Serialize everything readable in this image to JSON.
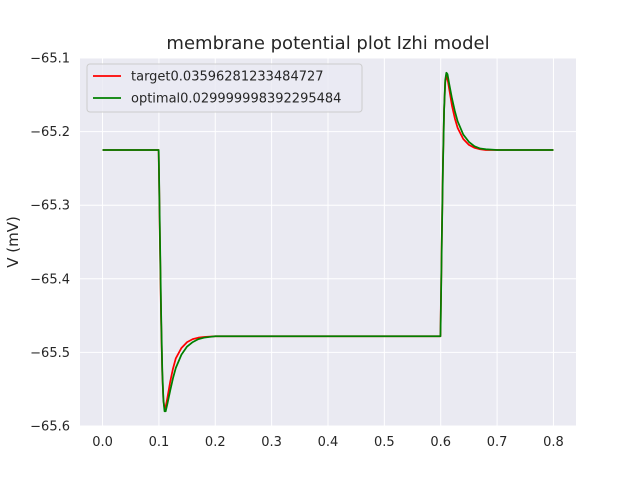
{
  "chart_data": {
    "type": "line",
    "title": "membrane potential plot Izhi model",
    "xlabel": "",
    "ylabel": "V (mV)",
    "xlim": [
      -0.04,
      0.84
    ],
    "ylim": [
      -65.6,
      -65.1
    ],
    "xticks": [
      "0.0",
      "0.1",
      "0.2",
      "0.3",
      "0.4",
      "0.5",
      "0.6",
      "0.7",
      "0.8"
    ],
    "yticks": [
      "−65.6",
      "−65.5",
      "−65.4",
      "−65.3",
      "−65.2",
      "−65.1"
    ],
    "xtick_values": [
      0.0,
      0.1,
      0.2,
      0.3,
      0.4,
      0.5,
      0.6,
      0.7,
      0.8
    ],
    "ytick_values": [
      -65.6,
      -65.5,
      -65.4,
      -65.3,
      -65.2,
      -65.1
    ],
    "grid": true,
    "legend_position": "top-left",
    "background_color": "#eaeaf2",
    "series": [
      {
        "name": "target0.03596281233484727",
        "color": "#ff0000",
        "x": [
          0.0,
          0.05,
          0.0995,
          0.1,
          0.102,
          0.104,
          0.106,
          0.108,
          0.11,
          0.112,
          0.115,
          0.12,
          0.125,
          0.13,
          0.14,
          0.15,
          0.16,
          0.17,
          0.18,
          0.2,
          0.22,
          0.25,
          0.3,
          0.4,
          0.5,
          0.5995,
          0.6,
          0.602,
          0.604,
          0.606,
          0.608,
          0.61,
          0.612,
          0.615,
          0.62,
          0.625,
          0.63,
          0.64,
          0.65,
          0.66,
          0.67,
          0.68,
          0.7,
          0.72,
          0.75,
          0.8
        ],
        "y": [
          -65.225,
          -65.225,
          -65.225,
          -65.25,
          -65.36,
          -65.46,
          -65.53,
          -65.565,
          -65.576,
          -65.574,
          -65.562,
          -65.54,
          -65.522,
          -65.508,
          -65.494,
          -65.486,
          -65.482,
          -65.48,
          -65.479,
          -65.478,
          -65.478,
          -65.478,
          -65.478,
          -65.478,
          -65.478,
          -65.478,
          -65.45,
          -65.34,
          -65.24,
          -65.17,
          -65.133,
          -65.125,
          -65.128,
          -65.142,
          -65.165,
          -65.182,
          -65.195,
          -65.21,
          -65.218,
          -65.222,
          -65.224,
          -65.225,
          -65.225,
          -65.225,
          -65.225,
          -65.225
        ]
      },
      {
        "name": "optimal0.029999998392295484",
        "color": "#008000",
        "x": [
          0.0,
          0.05,
          0.0995,
          0.1,
          0.102,
          0.104,
          0.106,
          0.108,
          0.11,
          0.112,
          0.115,
          0.12,
          0.125,
          0.13,
          0.14,
          0.15,
          0.16,
          0.17,
          0.18,
          0.19,
          0.2,
          0.22,
          0.25,
          0.3,
          0.4,
          0.5,
          0.5995,
          0.6,
          0.602,
          0.604,
          0.606,
          0.608,
          0.61,
          0.612,
          0.615,
          0.62,
          0.625,
          0.63,
          0.64,
          0.65,
          0.66,
          0.67,
          0.68,
          0.7,
          0.72,
          0.75,
          0.8
        ],
        "y": [
          -65.225,
          -65.225,
          -65.225,
          -65.245,
          -65.35,
          -65.45,
          -65.525,
          -65.565,
          -65.58,
          -65.58,
          -65.57,
          -65.552,
          -65.535,
          -65.521,
          -65.503,
          -65.492,
          -65.486,
          -65.482,
          -65.48,
          -65.479,
          -65.478,
          -65.478,
          -65.478,
          -65.478,
          -65.478,
          -65.478,
          -65.478,
          -65.455,
          -65.345,
          -65.245,
          -65.17,
          -65.13,
          -65.12,
          -65.122,
          -65.135,
          -65.155,
          -65.172,
          -65.186,
          -65.204,
          -65.214,
          -65.22,
          -65.223,
          -65.224,
          -65.225,
          -65.225,
          -65.225,
          -65.225
        ]
      }
    ]
  }
}
